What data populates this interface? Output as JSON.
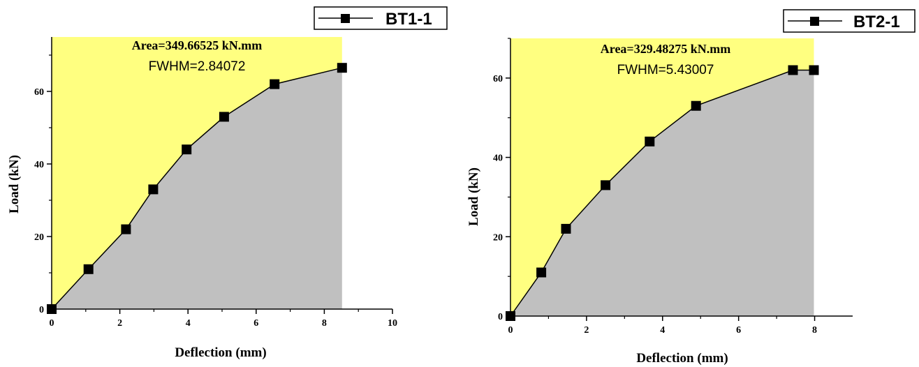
{
  "colors": {
    "area_above": "#ffff80",
    "area_below": "#c0c0c0",
    "line": "#000000",
    "marker": "#000000"
  },
  "chart_data": [
    {
      "type": "area",
      "xlabel": "Deflection (mm)",
      "ylabel": "Load (kN)",
      "xlim": [
        0,
        10
      ],
      "ylim": [
        0,
        75
      ],
      "xticks": [
        0,
        2,
        4,
        6,
        8,
        10
      ],
      "yticks": [
        0,
        20,
        40,
        60
      ],
      "legend": "top-right",
      "grid": false,
      "series": [
        {
          "name": "BT1-1",
          "x": [
            0,
            1.08,
            2.18,
            2.98,
            3.96,
            5.06,
            6.54,
            8.52
          ],
          "y": [
            0,
            11,
            22,
            33,
            44,
            53,
            62,
            66.5
          ]
        }
      ],
      "annotations": {
        "area": "Area=349.66525 kN.mm",
        "fwhm": "FWHM=2.84072"
      }
    },
    {
      "type": "area",
      "xlabel": "Deflection (mm)",
      "ylabel": "Load (kN)",
      "xlim": [
        0,
        9
      ],
      "ylim": [
        0,
        70
      ],
      "xticks": [
        0,
        2,
        4,
        6,
        8
      ],
      "yticks": [
        0,
        20,
        40,
        60
      ],
      "legend": "top-right",
      "grid": false,
      "series": [
        {
          "name": "BT2-1",
          "x": [
            0,
            0.81,
            1.46,
            2.5,
            3.66,
            4.88,
            7.43,
            7.98
          ],
          "y": [
            0,
            11,
            22,
            33,
            44,
            53,
            62,
            62
          ]
        }
      ],
      "annotations": {
        "area": "Area=329.48275 kN.mm",
        "fwhm": "FWHM=5.43007"
      }
    }
  ]
}
